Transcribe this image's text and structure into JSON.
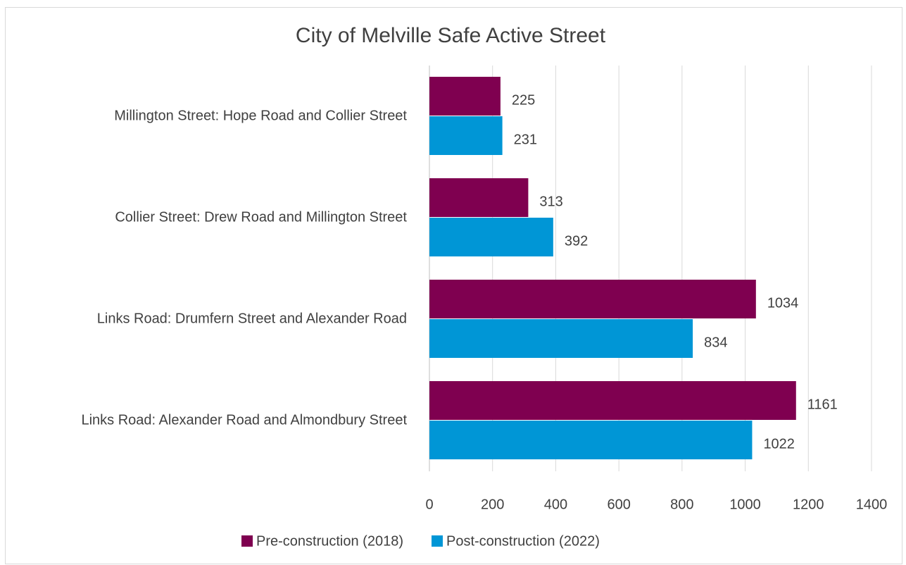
{
  "chart_data": {
    "type": "bar",
    "orientation": "horizontal",
    "title": "City of Melville Safe Active Street",
    "categories": [
      "Millington Street: Hope Road and Collier Street",
      "Collier Street: Drew Road and Millington Street",
      "Links Road: Drumfern Street and Alexander Road",
      "Links Road: Alexander Road and Almondbury Street"
    ],
    "series": [
      {
        "name": "Pre-construction (2018)",
        "color": "#7f0050",
        "values": [
          225,
          313,
          1034,
          1161
        ]
      },
      {
        "name": "Post-construction (2022)",
        "color": "#0096d6",
        "values": [
          231,
          392,
          834,
          1022
        ]
      }
    ],
    "xlim": [
      0,
      1400
    ],
    "xticks": [
      0,
      200,
      400,
      600,
      800,
      1000,
      1200,
      1400
    ],
    "grid": true,
    "legend": "bottom"
  }
}
